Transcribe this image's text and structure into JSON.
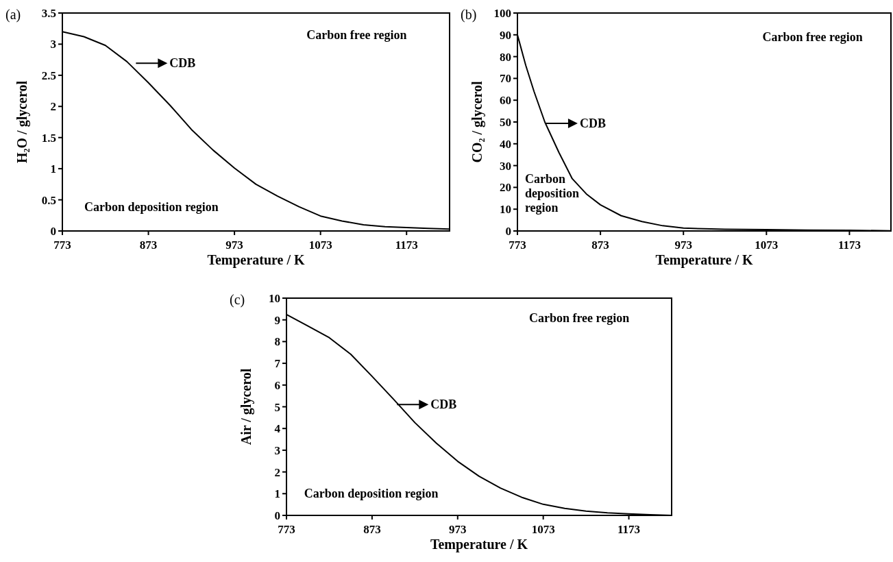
{
  "chart_data": [
    {
      "type": "line",
      "title": "(a)",
      "xlabel": "Temperature / K",
      "ylabel": "H₂O / glycerol",
      "x": [
        773,
        798,
        823,
        848,
        873,
        898,
        923,
        948,
        973,
        998,
        1023,
        1048,
        1073,
        1098,
        1123,
        1148,
        1173,
        1198,
        1223
      ],
      "series": [
        {
          "color": "#000000",
          "values": [
            3.2,
            3.12,
            2.98,
            2.72,
            2.38,
            2.02,
            1.63,
            1.3,
            1.01,
            0.75,
            0.56,
            0.39,
            0.24,
            0.16,
            0.1,
            0.07,
            0.055,
            0.04,
            0.03
          ]
        }
      ],
      "xlim": [
        773,
        1223
      ],
      "xticks": [
        773,
        873,
        973,
        1073,
        1173
      ],
      "ylim": [
        0,
        3.5
      ],
      "yticks": [
        0,
        0.5,
        1,
        1.5,
        2,
        2.5,
        3,
        3.5
      ],
      "marker": "none",
      "line_style": "solid",
      "annotations": [
        "Carbon free region",
        "Carbon deposition region",
        "CDB"
      ]
    },
    {
      "type": "line",
      "title": "(b)",
      "xlabel": "Temperature / K",
      "ylabel": "CO₂ / glycerol",
      "x": [
        773,
        783,
        793,
        806,
        823,
        839,
        856,
        873,
        898,
        923,
        948,
        973,
        998,
        1023,
        1073,
        1123,
        1173,
        1223
      ],
      "series": [
        {
          "color": "#000000",
          "values": [
            90,
            76,
            64,
            50,
            36,
            24,
            17,
            12,
            7,
            4.3,
            2.4,
            1.3,
            1,
            0.8,
            0.6,
            0.4,
            0.3,
            0.1
          ]
        }
      ],
      "xlim": [
        773,
        1223
      ],
      "xticks": [
        773,
        873,
        973,
        1073,
        1173
      ],
      "ylim": [
        0,
        100
      ],
      "yticks": [
        0,
        10,
        20,
        30,
        40,
        50,
        60,
        70,
        80,
        90,
        100
      ],
      "marker": "none",
      "line_style": "solid",
      "annotations": [
        "Carbon free region",
        "Carbon deposition region",
        "CDB"
      ]
    },
    {
      "type": "line",
      "title": "(c)",
      "xlabel": "Temperature / K",
      "ylabel": "Air / glycerol",
      "x": [
        773,
        798,
        823,
        848,
        873,
        898,
        923,
        948,
        973,
        998,
        1023,
        1048,
        1073,
        1098,
        1123,
        1148,
        1173,
        1198,
        1223
      ],
      "series": [
        {
          "color": "#000000",
          "values": [
            9.25,
            8.72,
            8.18,
            7.42,
            6.4,
            5.35,
            4.27,
            3.33,
            2.49,
            1.8,
            1.26,
            0.83,
            0.51,
            0.32,
            0.2,
            0.12,
            0.07,
            0.03,
            0
          ]
        }
      ],
      "xlim": [
        773,
        1223
      ],
      "xticks": [
        773,
        873,
        973,
        1073,
        1173
      ],
      "ylim": [
        0,
        10
      ],
      "yticks": [
        0,
        1,
        2,
        3,
        4,
        5,
        6,
        7,
        8,
        9,
        10
      ],
      "marker": "none",
      "line_style": "solid",
      "annotations": [
        "Carbon free region",
        "Carbon deposition region",
        "CDB"
      ]
    }
  ]
}
